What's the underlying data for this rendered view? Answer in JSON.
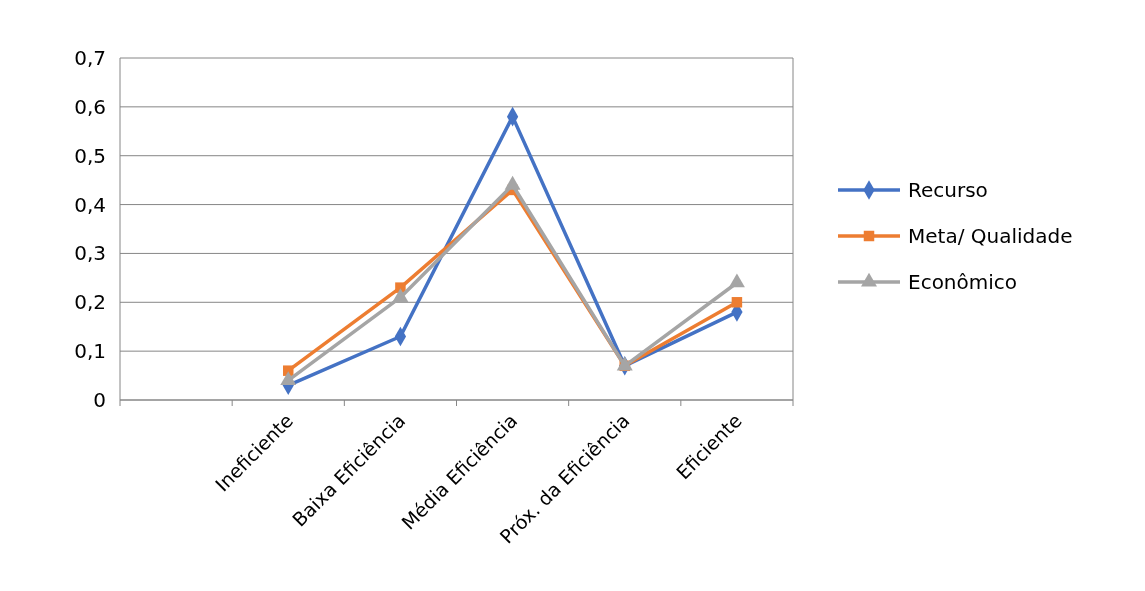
{
  "chart_data": {
    "type": "line",
    "categories": [
      null,
      "Ineficiente",
      "Baixa Eficiência",
      "Média Eficiência",
      "Próx. da Eficiência",
      "Eficiente"
    ],
    "series": [
      {
        "name": "Recurso",
        "color": "#4472c4",
        "marker": "diamond",
        "values": [
          null,
          0.03,
          0.13,
          0.58,
          0.07,
          0.18
        ]
      },
      {
        "name": "Meta/ Qualidade",
        "color": "#ed7d31",
        "marker": "square",
        "values": [
          null,
          0.06,
          0.23,
          0.43,
          0.07,
          0.2
        ]
      },
      {
        "name": "Econômico",
        "color": "#a5a5a5",
        "marker": "triangle",
        "values": [
          null,
          0.04,
          0.21,
          0.44,
          0.07,
          0.24
        ]
      }
    ],
    "ylim": [
      0,
      0.7
    ],
    "yticks": [
      {
        "value": 0,
        "label": "0"
      },
      {
        "value": 0.1,
        "label": "0,1"
      },
      {
        "value": 0.2,
        "label": "0,2"
      },
      {
        "value": 0.3,
        "label": "0,3"
      },
      {
        "value": 0.4,
        "label": "0,4"
      },
      {
        "value": 0.5,
        "label": "0,5"
      },
      {
        "value": 0.6,
        "label": "0,6"
      },
      {
        "value": 0.7,
        "label": "0,7"
      }
    ],
    "grid": "y",
    "legend": "right"
  }
}
